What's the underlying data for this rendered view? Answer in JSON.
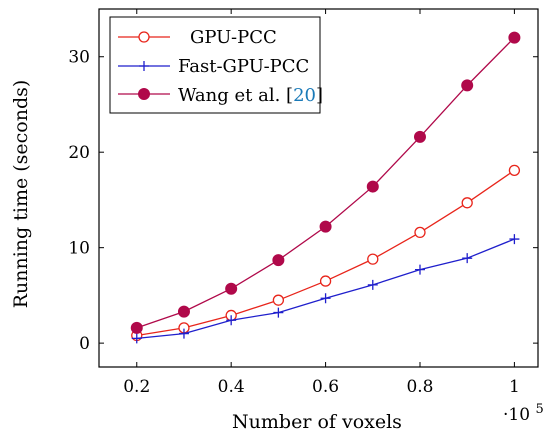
{
  "chart_data": {
    "type": "line",
    "xlabel": "Number of voxels",
    "x_multiplier_base": "·10",
    "x_multiplier_exp": "5",
    "ylabel": "Running time (seconds)",
    "x": [
      0.2,
      0.3,
      0.4,
      0.5,
      0.6,
      0.7,
      0.8,
      0.9,
      1.0
    ],
    "xlim": [
      0.12,
      1.05
    ],
    "ylim": [
      -2.5,
      35
    ],
    "xticks": [
      0.2,
      0.4,
      0.6,
      0.8,
      1.0
    ],
    "xtick_labels": [
      "0.2",
      "0.4",
      "0.6",
      "0.8",
      "1"
    ],
    "yticks": [
      0,
      10,
      20,
      30
    ],
    "ytick_labels": [
      "0",
      "10",
      "20",
      "30"
    ],
    "grid": false,
    "legend_position": "top-left",
    "series": [
      {
        "name": "GPU-PCC",
        "color": "#e8251b",
        "marker": "open-circle",
        "values": [
          0.8,
          1.6,
          2.9,
          4.5,
          6.5,
          8.8,
          11.6,
          14.7,
          18.1
        ]
      },
      {
        "name": "Fast-GPU-PCC",
        "color": "#1f1fcc",
        "marker": "plus",
        "values": [
          0.5,
          1.0,
          2.4,
          3.2,
          4.7,
          6.1,
          7.7,
          8.9,
          10.9
        ]
      },
      {
        "name": "Wang et al. [20]",
        "name_text": "Wang et al. [",
        "name_ref": "20",
        "name_close": "]",
        "color": "#b0094a",
        "marker": "filled-circle",
        "values": [
          1.6,
          3.3,
          5.7,
          8.7,
          12.2,
          16.4,
          21.6,
          27.0,
          32.0
        ]
      }
    ]
  }
}
